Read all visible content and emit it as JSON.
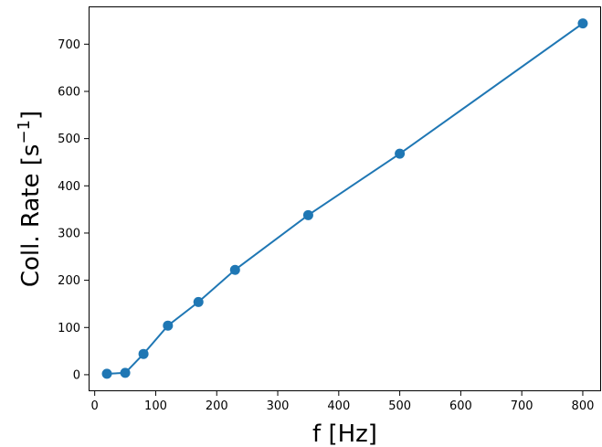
{
  "chart_data": {
    "type": "line",
    "title": "",
    "xlabel": "f [Hz]",
    "ylabel": {
      "main": "Coll. Rate [s",
      "superscript": "−1",
      "close": "]"
    },
    "xlim": [
      -10,
      830
    ],
    "ylim": [
      -35,
      780
    ],
    "xticks": [
      0,
      100,
      200,
      300,
      400,
      500,
      600,
      700,
      800
    ],
    "yticks": [
      0,
      100,
      200,
      300,
      400,
      500,
      600,
      700
    ],
    "grid": false,
    "legend": "none",
    "series": [
      {
        "color": "#1f77b4",
        "marker": "circle",
        "x": [
          20,
          50,
          80,
          120,
          170,
          230,
          350,
          500,
          800
        ],
        "y": [
          2,
          4,
          44,
          104,
          154,
          222,
          338,
          468,
          744
        ]
      }
    ]
  }
}
